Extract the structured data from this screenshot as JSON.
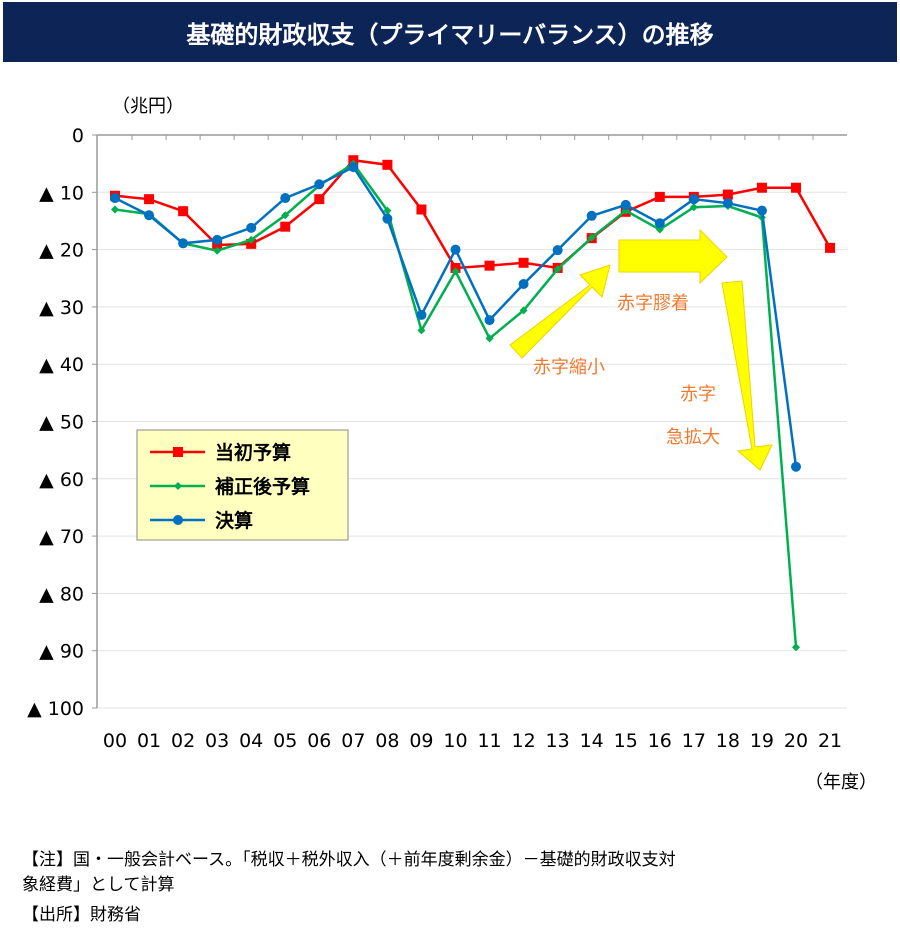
{
  "title": "基礎的財政収支（プライマリーバランス）の推移",
  "chart_data": {
    "type": "line",
    "title": "基礎的財政収支（プライマリーバランス）の推移",
    "ylabel": "（兆円）",
    "xlabel": "（年度）",
    "ylim": [
      0,
      100
    ],
    "y_inverted": true,
    "yticks": [
      "0",
      "▲ 10",
      "▲ 20",
      "▲ 30",
      "▲ 40",
      "▲ 50",
      "▲ 60",
      "▲ 70",
      "▲ 80",
      "▲ 90",
      "▲ 100"
    ],
    "categories": [
      "00",
      "01",
      "02",
      "03",
      "04",
      "05",
      "06",
      "07",
      "08",
      "09",
      "10",
      "11",
      "12",
      "13",
      "14",
      "15",
      "16",
      "17",
      "18",
      "19",
      "20",
      "21"
    ],
    "series": [
      {
        "name": "当初予算",
        "color": "#ff0000",
        "marker": "square",
        "values": [
          10.6,
          11.2,
          13.3,
          19.2,
          19.0,
          16.0,
          11.2,
          4.4,
          5.2,
          13.0,
          23.2,
          22.8,
          22.3,
          23.2,
          18.0,
          13.4,
          10.8,
          10.8,
          10.4,
          9.2,
          9.2,
          19.7
        ]
      },
      {
        "name": "補正後予算",
        "color": "#00b050",
        "marker": "diamond",
        "values": [
          13.0,
          13.8,
          18.9,
          20.2,
          18.3,
          14.0,
          8.8,
          5.0,
          13.2,
          34.1,
          23.8,
          35.5,
          30.6,
          23.4,
          17.9,
          13.2,
          16.5,
          12.6,
          12.4,
          14.4,
          89.4,
          null
        ]
      },
      {
        "name": "決算",
        "color": "#0070c0",
        "marker": "circle",
        "values": [
          11.0,
          14.0,
          18.9,
          18.3,
          16.2,
          11.0,
          8.6,
          5.6,
          14.6,
          31.4,
          20.0,
          32.3,
          26.0,
          20.1,
          14.1,
          12.2,
          15.4,
          11.2,
          11.9,
          13.2,
          57.9,
          null
        ]
      }
    ],
    "legend": "left-middle",
    "annotations": [
      "赤字縮小",
      "赤字膠着",
      "赤字",
      "急拡大"
    ],
    "grid": true
  },
  "notes": [
    "【注】国・一般会計ベース。「税収＋税外収入（＋前年度剰余金）－基礎的財政収支対",
    "象経費」として計算",
    "【出所】財務省"
  ]
}
